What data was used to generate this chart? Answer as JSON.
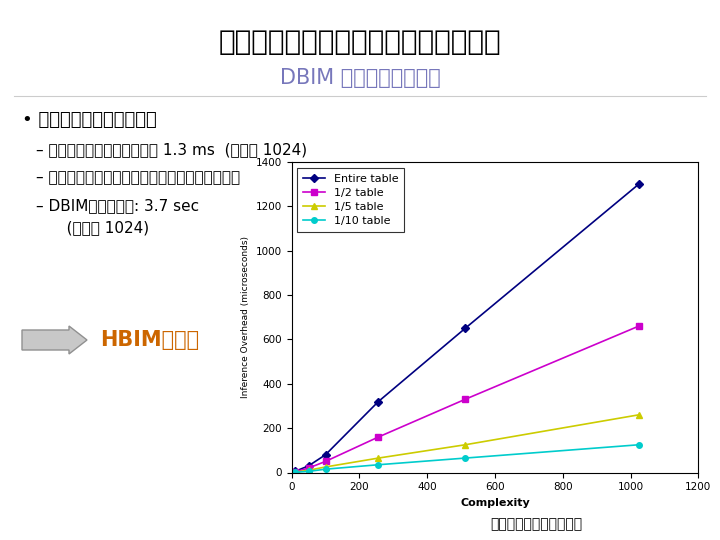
{
  "title_main": "参考ご意見と論文修正箇所について２",
  "title_sub": "DBIM との比較について",
  "title_main_color": "#000000",
  "title_sub_color": "#7777bb",
  "bullet_line0": "• コンテキストの検出時間",
  "bullet_line1": "– 全エントリを処理した場合 1.3 ms  (複雑度 1024)",
  "bullet_line2": "– インデックスの選択送信により解析時間は減少",
  "bullet_line3": "– DBIMの検出時間: 3.7 sec",
  "bullet_line4": "   (複雑度 1024)",
  "hbim_text": "HBIMが優位",
  "chart_caption": "複雑度と解析時間の関係",
  "xlabel": "Complexity",
  "ylabel": "Inference Overhead (microseconds)",
  "xlim": [
    0,
    1200
  ],
  "ylim": [
    0,
    1400
  ],
  "xticks": [
    0,
    200,
    400,
    600,
    800,
    1000,
    1200
  ],
  "yticks": [
    0,
    200,
    400,
    600,
    800,
    1000,
    1200,
    1400
  ],
  "series": [
    {
      "label": "Entire table",
      "color": "#000080",
      "marker": "D",
      "x": [
        10,
        50,
        100,
        256,
        512,
        1024
      ],
      "y": [
        5,
        30,
        80,
        320,
        650,
        1300
      ]
    },
    {
      "label": "1/2 table",
      "color": "#cc00cc",
      "marker": "s",
      "x": [
        10,
        50,
        100,
        256,
        512,
        1024
      ],
      "y": [
        3,
        20,
        50,
        160,
        330,
        660
      ]
    },
    {
      "label": "1/5 table",
      "color": "#cccc00",
      "marker": "^",
      "x": [
        10,
        50,
        100,
        256,
        512,
        1024
      ],
      "y": [
        2,
        10,
        25,
        65,
        125,
        260
      ]
    },
    {
      "label": "1/10 table",
      "color": "#00cccc",
      "marker": "o",
      "x": [
        10,
        50,
        100,
        256,
        512,
        1024
      ],
      "y": [
        1,
        5,
        15,
        35,
        65,
        125
      ]
    }
  ],
  "bg_color": "#ffffff"
}
